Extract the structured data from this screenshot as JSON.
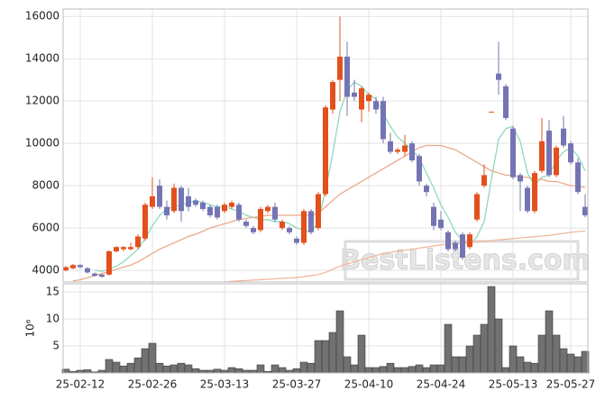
{
  "chart_data": [
    {
      "type": "candlestick",
      "open": [
        4000,
        4100,
        4250,
        4100,
        3850,
        3800,
        3800,
        4900,
        5000,
        5000,
        5100,
        5500,
        7000,
        8000,
        7000,
        6800,
        7900,
        7500,
        7300,
        7200,
        7000,
        7000,
        6800,
        7000,
        7100,
        6300,
        6000,
        5900,
        6800,
        7000,
        6000,
        6000,
        5500,
        5300,
        6800,
        6000,
        7600,
        11600,
        13000,
        14100,
        12400,
        11600,
        12000,
        12000,
        12000,
        10100,
        9600,
        9600,
        10000,
        9400,
        8000,
        7000,
        6400,
        5800,
        5300,
        5700,
        5100,
        6400,
        8000,
        11500,
        13300,
        12700,
        10700,
        8500,
        7900,
        6800,
        8700,
        10600,
        8500,
        10700,
        10000,
        9100,
        7000
      ],
      "high": [
        4200,
        4300,
        4300,
        4150,
        3900,
        3850,
        4950,
        5150,
        5150,
        5300,
        5700,
        7200,
        8400,
        8300,
        7300,
        8100,
        8000,
        7900,
        7400,
        7300,
        7100,
        7100,
        7200,
        7300,
        7200,
        6400,
        6100,
        7000,
        7100,
        7200,
        6400,
        6100,
        5600,
        6900,
        6900,
        7700,
        11800,
        13000,
        16000,
        14800,
        13000,
        12700,
        12400,
        12200,
        12200,
        10500,
        9800,
        10400,
        10100,
        9500,
        8100,
        7200,
        6800,
        5900,
        5400,
        5800,
        5800,
        7700,
        9000,
        11500,
        14800,
        12800,
        10800,
        8600,
        8000,
        8700,
        11200,
        11100,
        9900,
        11300,
        10100,
        9300,
        7600
      ],
      "low": [
        3950,
        4050,
        4100,
        3850,
        3700,
        3650,
        3750,
        4850,
        4900,
        4950,
        5000,
        5400,
        6900,
        6900,
        6400,
        6700,
        6300,
        6800,
        7000,
        6800,
        6500,
        6400,
        6700,
        6900,
        6300,
        6000,
        5700,
        5800,
        6700,
        6300,
        5900,
        5700,
        5200,
        5200,
        5700,
        5900,
        7500,
        11400,
        12000,
        11300,
        12000,
        11000,
        11500,
        11400,
        10000,
        9500,
        9500,
        9400,
        9100,
        8000,
        7500,
        5900,
        5900,
        4900,
        4900,
        4500,
        5000,
        6300,
        7900,
        11500,
        12300,
        11100,
        8300,
        6800,
        6700,
        6700,
        8600,
        8400,
        8400,
        9800,
        9000,
        7600,
        6500
      ],
      "close": [
        4150,
        4250,
        4150,
        3900,
        3750,
        3700,
        4900,
        5100,
        5100,
        5100,
        5600,
        7100,
        7500,
        7000,
        6600,
        7900,
        6800,
        7000,
        7100,
        6900,
        6600,
        6500,
        7100,
        7200,
        6400,
        6100,
        5800,
        6900,
        7000,
        6400,
        6300,
        5800,
        5300,
        6800,
        5800,
        7600,
        11700,
        12900,
        14100,
        12200,
        12200,
        12600,
        12300,
        11600,
        10200,
        9600,
        9700,
        9900,
        9200,
        8200,
        7700,
        6100,
        6000,
        5000,
        5000,
        4600,
        5700,
        7600,
        8500,
        11500,
        13000,
        11200,
        8400,
        8200,
        6800,
        8600,
        10100,
        8500,
        9800,
        9900,
        9100,
        7700,
        6600
      ],
      "up_color": "#e3501c",
      "down_color": "#7474b4",
      "lines": [
        {
          "color": "#8fd8bd",
          "values": [
            null,
            null,
            null,
            null,
            4000,
            3950,
            4050,
            4200,
            4400,
            4700,
            5000,
            5500,
            6100,
            6600,
            6900,
            7000,
            7100,
            7200,
            7300,
            7200,
            7100,
            7000,
            7000,
            6900,
            6800,
            6600,
            6500,
            6400,
            6400,
            6300,
            6300,
            6200,
            6000,
            5900,
            5800,
            6300,
            7800,
            9500,
            11500,
            12500,
            12900,
            12700,
            12300,
            12100,
            11400,
            10800,
            10300,
            10000,
            9700,
            9300,
            8600,
            7900,
            7100,
            6500,
            5800,
            5400,
            5200,
            5600,
            6300,
            8300,
            10200,
            10700,
            10800,
            10100,
            8600,
            8000,
            8400,
            8500,
            9200,
            9600,
            9800,
            9400,
            8700
          ]
        },
        {
          "color": "#eba98c",
          "values": [
            null,
            3500,
            3550,
            3650,
            3750,
            3850,
            3950,
            4050,
            4150,
            4250,
            4400,
            4600,
            4800,
            5000,
            5150,
            5300,
            5450,
            5600,
            5700,
            5850,
            6000,
            6100,
            6200,
            6300,
            6400,
            6450,
            6500,
            6550,
            6600,
            6600,
            6600,
            6600,
            6600,
            6600,
            6600,
            6700,
            7000,
            7300,
            7600,
            7800,
            8000,
            8200,
            8400,
            8600,
            8800,
            9000,
            9200,
            9400,
            9600,
            9800,
            9900,
            9900,
            9900,
            9800,
            9700,
            9500,
            9300,
            9100,
            8900,
            8700,
            8600,
            8500,
            8500,
            8400,
            8400,
            8300,
            8300,
            8200,
            8200,
            8100,
            8000,
            8000,
            7900
          ]
        },
        {
          "color": "#f0b89e",
          "values": [
            null,
            null,
            null,
            null,
            null,
            null,
            null,
            null,
            null,
            null,
            null,
            null,
            null,
            null,
            null,
            null,
            null,
            null,
            null,
            null,
            null,
            null,
            3450,
            3480,
            3500,
            3520,
            3540,
            3560,
            3580,
            3600,
            3620,
            3640,
            3660,
            3700,
            3750,
            3800,
            3900,
            4050,
            4200,
            4300,
            4400,
            4500,
            4600,
            4700,
            4800,
            4850,
            4900,
            4950,
            5000,
            5050,
            5100,
            5150,
            5200,
            5230,
            5260,
            5290,
            5320,
            5350,
            5380,
            5410,
            5440,
            5470,
            5500,
            5530,
            5560,
            5590,
            5620,
            5650,
            5700,
            5750,
            5800,
            5830,
            5860
          ]
        }
      ],
      "ylim": [
        3450,
        16350
      ],
      "yticks": [
        4000,
        6000,
        8000,
        10000,
        12000,
        14000,
        16000
      ],
      "grid": true,
      "watermark": "BestListens.com"
    },
    {
      "type": "bar",
      "categories": [
        null,
        null,
        "25-02-12",
        null,
        null,
        null,
        null,
        null,
        null,
        null,
        null,
        null,
        "25-02-26",
        null,
        null,
        null,
        null,
        null,
        null,
        null,
        null,
        null,
        "25-03-13",
        null,
        null,
        null,
        null,
        null,
        null,
        null,
        null,
        null,
        "25-03-27",
        null,
        null,
        null,
        null,
        null,
        null,
        null,
        null,
        null,
        "25-04-10",
        null,
        null,
        null,
        null,
        null,
        null,
        null,
        null,
        null,
        "25-04-24",
        null,
        null,
        null,
        null,
        null,
        null,
        null,
        null,
        null,
        "25-05-13",
        null,
        null,
        null,
        null,
        null,
        null,
        null,
        "25-05-27",
        null,
        null
      ],
      "values": [
        0.7,
        0.3,
        0.5,
        0.6,
        0.2,
        0.5,
        2.5,
        2.0,
        1.3,
        1.8,
        2.8,
        4.5,
        5.5,
        1.8,
        1.3,
        1.5,
        1.8,
        1.5,
        0.8,
        0.5,
        0.5,
        0.7,
        0.5,
        1.0,
        0.8,
        0.5,
        0.5,
        1.5,
        0.3,
        1.5,
        1.0,
        0.5,
        0.8,
        2.0,
        1.8,
        6.0,
        6.0,
        7.5,
        11.5,
        3.0,
        1.5,
        7.0,
        1.0,
        1.0,
        1.2,
        1.8,
        1.0,
        1.0,
        1.2,
        1.5,
        1.0,
        1.5,
        1.5,
        9.0,
        3.0,
        3.0,
        5.0,
        7.0,
        9.0,
        16.0,
        10.0,
        1.0,
        5.0,
        3.0,
        2.0,
        1.8,
        7.0,
        11.5,
        7.0,
        4.5,
        3.5,
        3.0,
        4.0
      ],
      "color": "#717171",
      "ylabel": "10⁶",
      "ylim": [
        0,
        16.5
      ],
      "yticks": [
        5,
        10,
        15
      ],
      "grid": true
    }
  ]
}
